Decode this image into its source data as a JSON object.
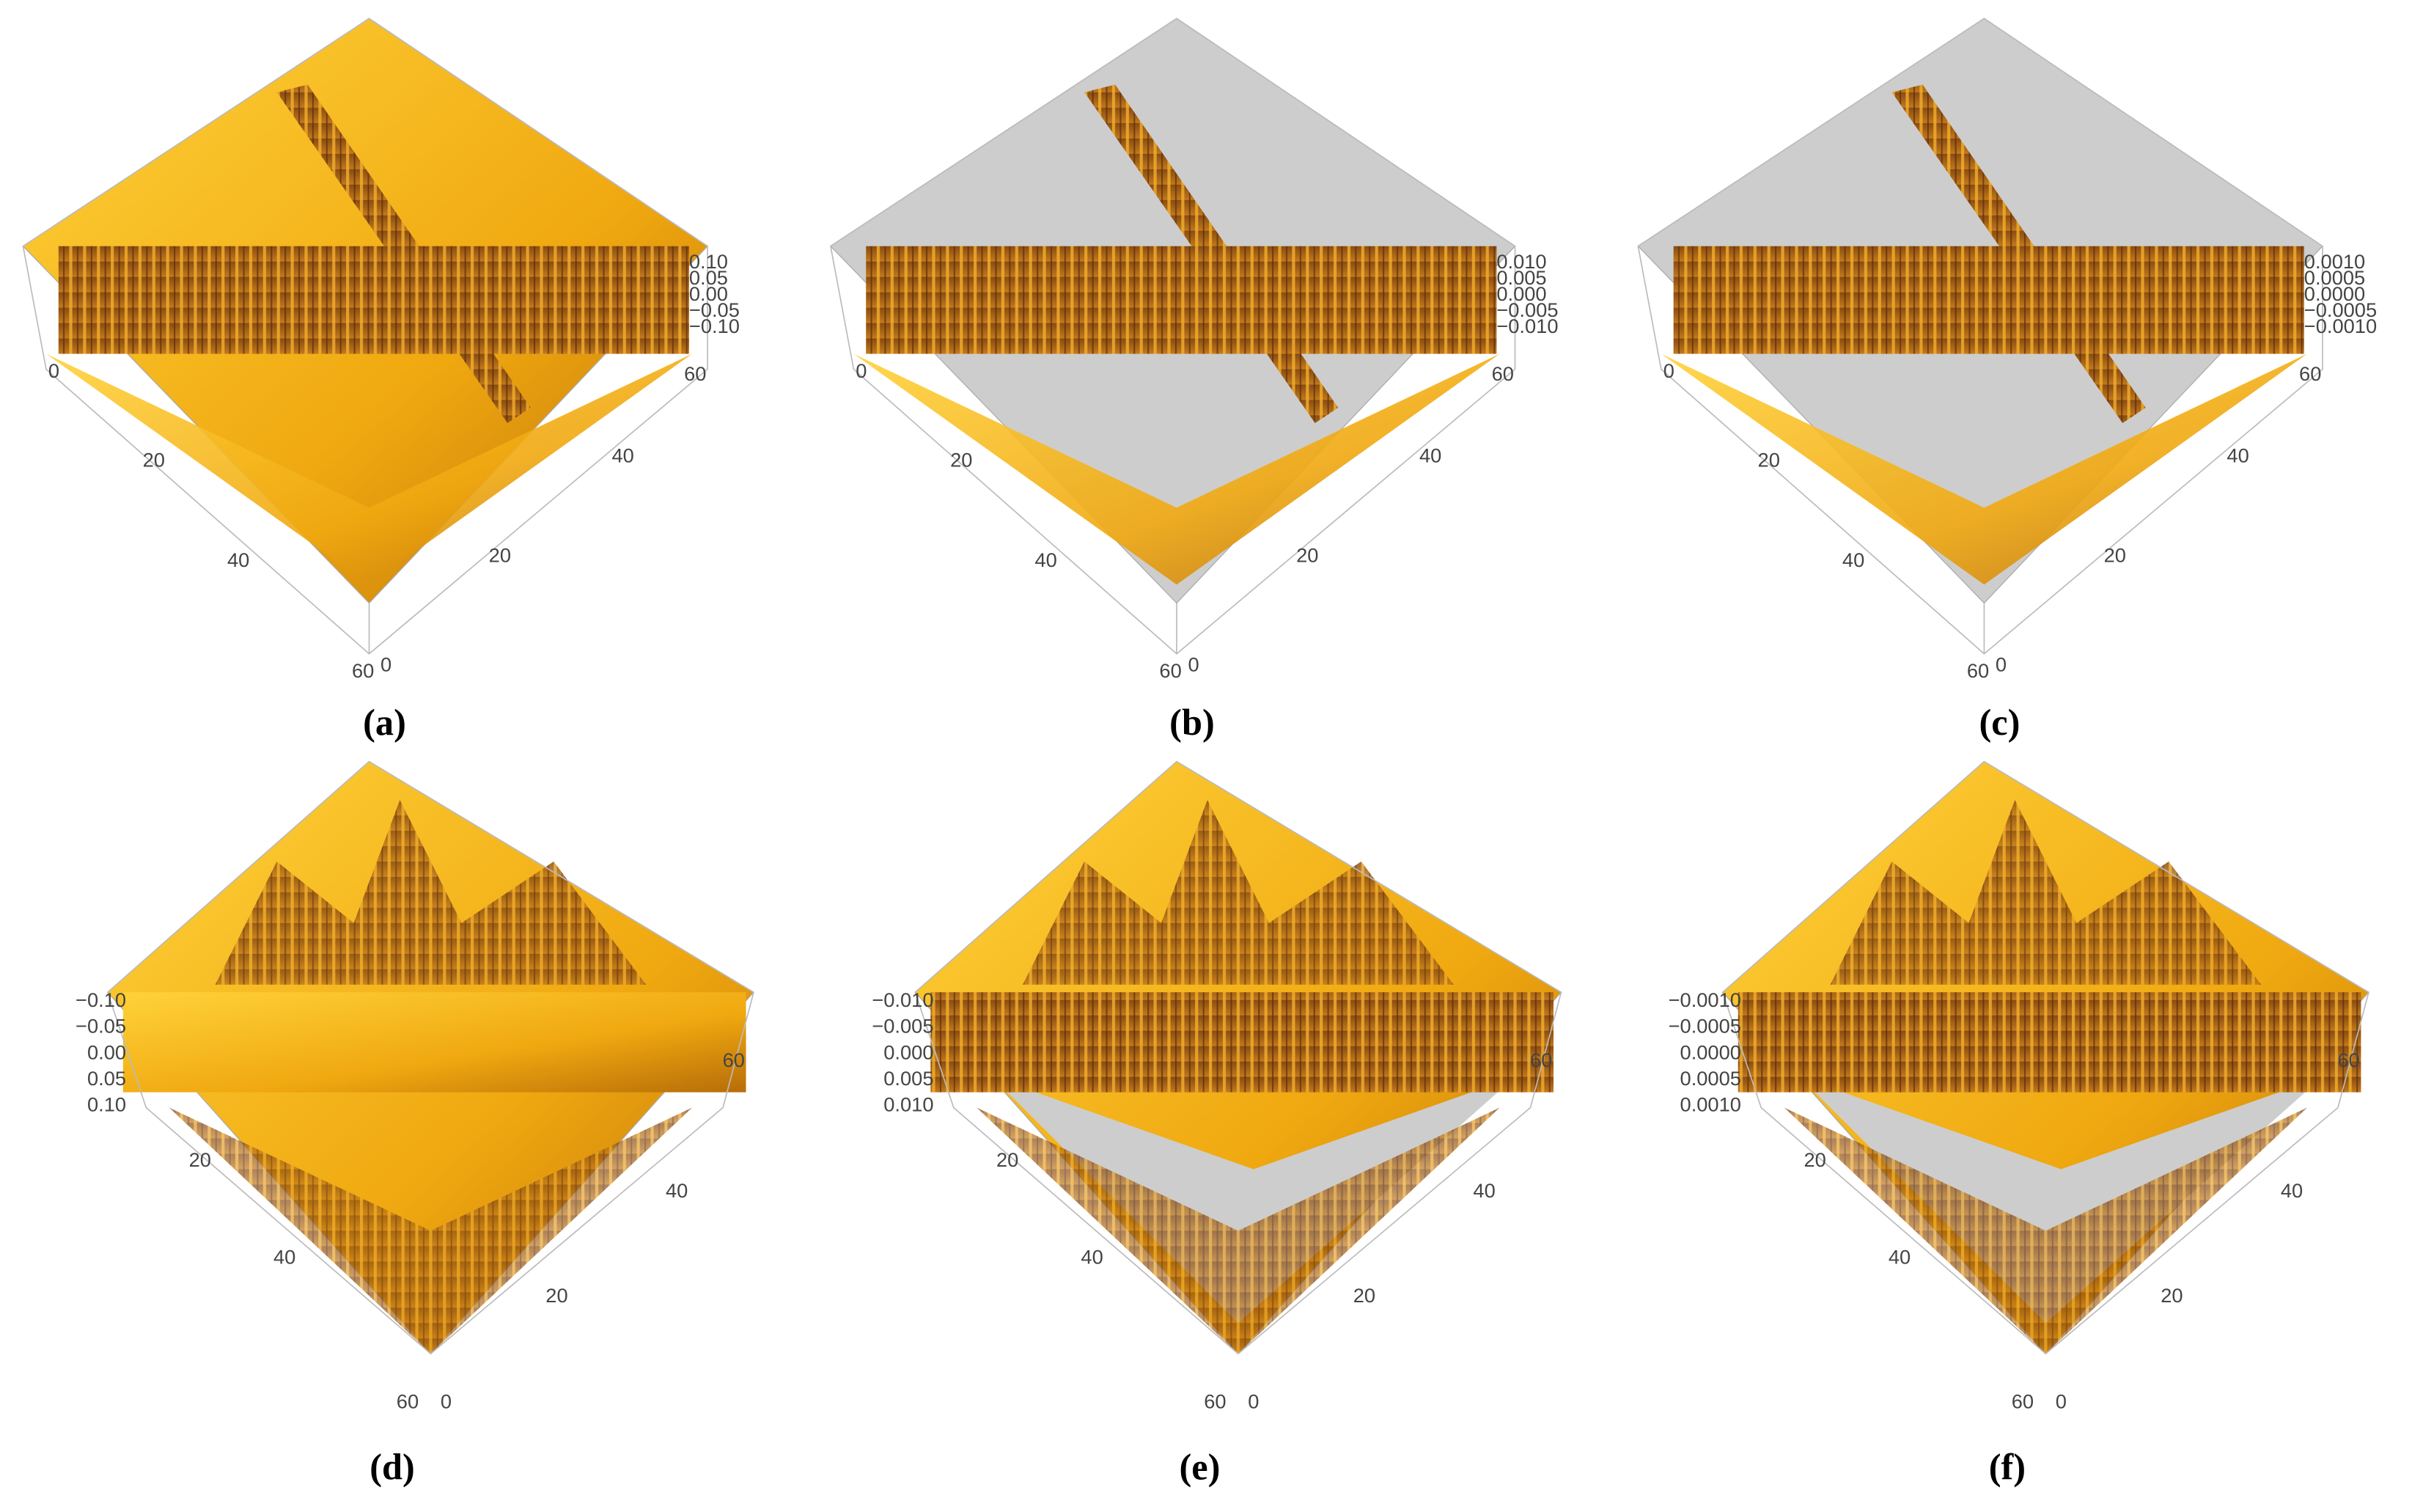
{
  "panels": [
    {
      "label": "(a)",
      "z_ticks": [
        "0.10",
        "0.05",
        "0.00",
        "−0.05",
        "−0.10"
      ],
      "left_ticks": [
        "0",
        "20",
        "40",
        "60"
      ],
      "right_ticks": [
        "0",
        "20",
        "40",
        "60"
      ]
    },
    {
      "label": "(b)",
      "z_ticks": [
        "0.010",
        "0.005",
        "0.000",
        "−0.005",
        "−0.010"
      ],
      "left_ticks": [
        "0",
        "20",
        "40",
        "60"
      ],
      "right_ticks": [
        "0",
        "20",
        "40",
        "60"
      ]
    },
    {
      "label": "(c)",
      "z_ticks": [
        "0.0010",
        "0.0005",
        "0.0000",
        "−0.0005",
        "−0.0010"
      ],
      "left_ticks": [
        "0",
        "20",
        "40",
        "60"
      ],
      "right_ticks": [
        "0",
        "20",
        "40",
        "60"
      ]
    },
    {
      "label": "(d)",
      "z_ticks": [
        "−0.10",
        "−0.05",
        "0.00",
        "0.05",
        "0.10"
      ],
      "left_ticks": [
        "20",
        "40",
        "60"
      ],
      "right_ticks": [
        "0",
        "20",
        "40",
        "60"
      ]
    },
    {
      "label": "(e)",
      "z_ticks": [
        "−0.010",
        "−0.005",
        "0.000",
        "0.005",
        "0.010"
      ],
      "left_ticks": [
        "20",
        "40",
        "60"
      ],
      "right_ticks": [
        "0",
        "20",
        "40",
        "60"
      ]
    },
    {
      "label": "(f)",
      "z_ticks": [
        "−0.0010",
        "−0.0005",
        "0.0000",
        "0.0005",
        "0.0010"
      ],
      "left_ticks": [
        "20",
        "40",
        "60"
      ],
      "right_ticks": [
        "0",
        "20",
        "40",
        "60"
      ]
    }
  ]
}
